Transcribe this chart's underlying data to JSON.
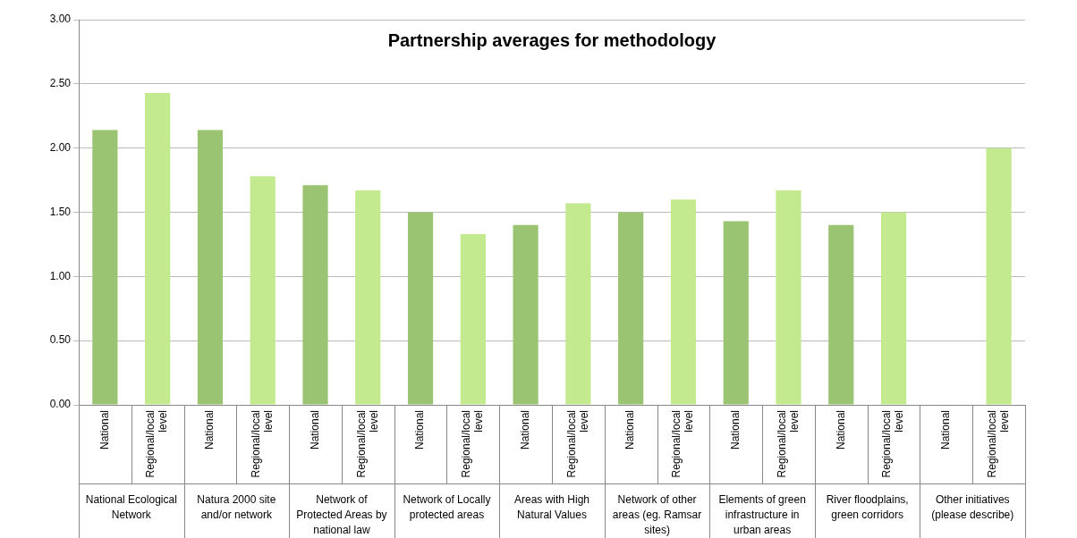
{
  "chart_data": {
    "type": "bar",
    "title": "Partnership averages for methodology",
    "categories": [
      "National Ecological Network",
      "Natura 2000 site and/or network",
      "Network of Protected Areas by national law",
      "Network of Locally protected areas",
      "Areas with High Natural Values",
      "Network of other areas (eg. Ramsar sites)",
      "Elements of green infrastructure in urban areas",
      "River floodplains, green corridors",
      "Other initiatives (please describe)"
    ],
    "series": [
      {
        "name": "National",
        "color": "#9bc472",
        "values": [
          2.14,
          2.14,
          1.71,
          1.5,
          1.4,
          1.5,
          1.43,
          1.4,
          0
        ]
      },
      {
        "name": "Regional/local level",
        "color": "#c3ea8f",
        "values": [
          2.43,
          1.78,
          1.67,
          1.33,
          1.57,
          1.6,
          1.67,
          1.5,
          2
        ]
      }
    ],
    "ylim": [
      0,
      3
    ],
    "yticks": [
      {
        "value": 0,
        "label": "0.00"
      },
      {
        "value": 0.5,
        "label": "0.50"
      },
      {
        "value": 1,
        "label": "1.00"
      },
      {
        "value": 1.5,
        "label": "1.50"
      },
      {
        "value": 2,
        "label": "2.00"
      },
      {
        "value": 2.5,
        "label": "2.50"
      },
      {
        "value": 3,
        "label": "3.00"
      }
    ],
    "grid": "y",
    "legend": false
  }
}
